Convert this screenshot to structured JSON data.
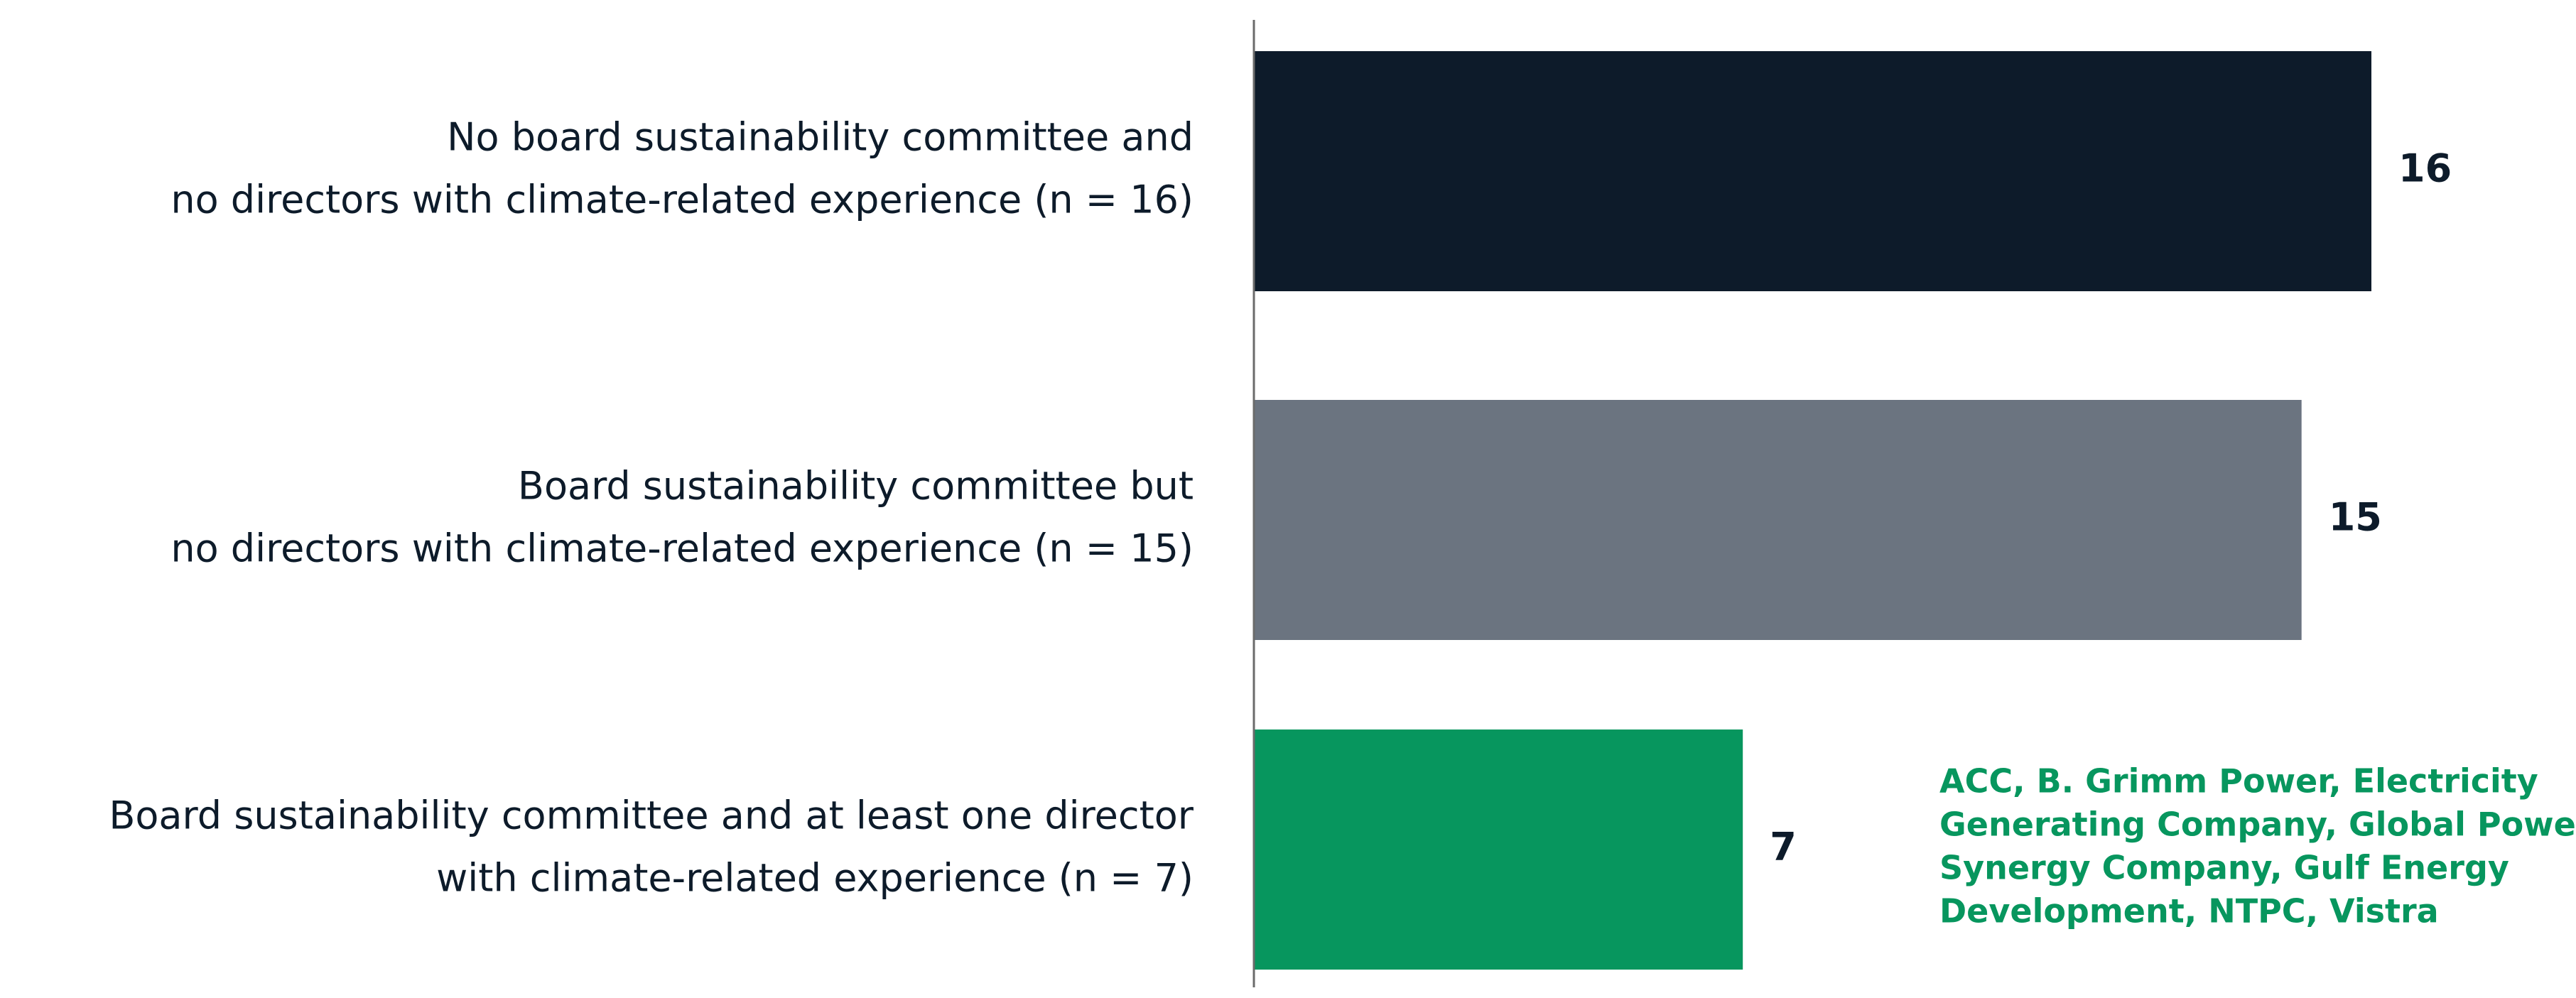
{
  "chart_data": {
    "type": "bar",
    "orientation": "horizontal",
    "categories": [
      [
        "No board sustainability committee and",
        "no directors with climate-related experience (n = 16)"
      ],
      [
        "Board sustainability committee but",
        "no directors with climate-related experience (n = 15)"
      ],
      [
        "Board sustainability committee and at least one director",
        "with climate-related experience (n = 7)"
      ]
    ],
    "values": [
      16,
      15,
      7
    ],
    "value_labels": [
      "16",
      "15",
      "7"
    ],
    "colors": [
      "#0d1b2a",
      "#6b7480",
      "#07965e"
    ],
    "xlim": [
      0,
      16
    ],
    "title": "",
    "xlabel": "",
    "ylabel": "",
    "grid": false,
    "legend": "none",
    "annotation": {
      "lines": [
        "ACC, B. Grimm Power, Electricity",
        "Generating Company, Global Power",
        "Synergy Company, Gulf Energy",
        "Development, NTPC, Vistra"
      ],
      "color": "#07965e",
      "attached_to": "Board sustainability committee and at least one director with climate-related experience (n = 7)"
    }
  },
  "colors": {
    "axis": "#6b6b6b",
    "label_text": "#0d1b2a"
  }
}
